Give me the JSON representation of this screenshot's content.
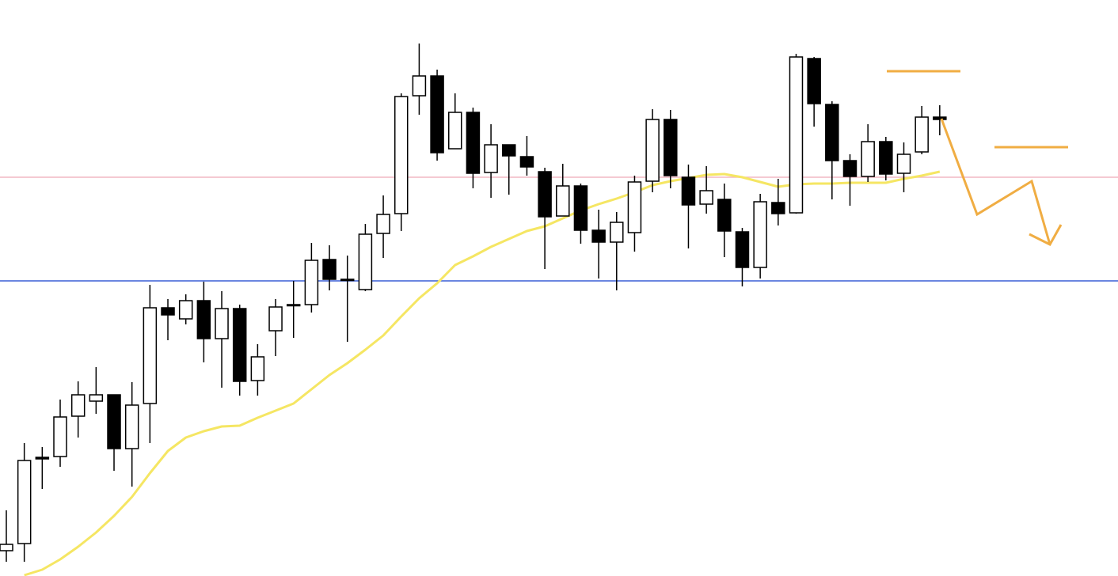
{
  "chart_data": {
    "type": "candlestick",
    "ylim": [
      0,
      728
    ],
    "open": [
      32,
      41,
      150,
      151,
      202,
      221,
      229,
      161,
      218,
      339,
      325,
      348,
      300,
      338,
      247,
      310,
      342,
      343,
      400,
      375,
      362,
      433,
      458,
      607,
      632,
      540,
      586,
      510,
      545,
      530,
      511,
      455,
      493,
      437,
      422,
      434,
      499,
      577,
      504,
      470,
      476,
      435,
      390,
      472,
      459,
      654,
      596,
      525,
      505,
      549,
      509,
      536,
      580
    ],
    "high": [
      83,
      168,
      163,
      223,
      246,
      264,
      229,
      245,
      368,
      350,
      356,
      372,
      360,
      343,
      293,
      350,
      373,
      421,
      418,
      405,
      445,
      481,
      610,
      673,
      640,
      610,
      592,
      571,
      545,
      556,
      516,
      521,
      496,
      463,
      460,
      506,
      590,
      589,
      520,
      518,
      496,
      440,
      483,
      502,
      660,
      656,
      600,
      533,
      571,
      555,
      548,
      594,
      595
    ],
    "low": [
      18,
      18,
      110,
      138,
      175,
      205,
      133,
      113,
      168,
      298,
      318,
      270,
      238,
      228,
      228,
      278,
      301,
      333,
      361,
      296,
      360,
      402,
      436,
      583,
      525,
      540,
      490,
      478,
      482,
      506,
      388,
      455,
      420,
      376,
      361,
      410,
      485,
      490,
      414,
      458,
      403,
      366,
      376,
      443,
      458,
      568,
      476,
      468,
      498,
      500,
      485,
      533,
      557
    ],
    "close": [
      40,
      146,
      148,
      201,
      229,
      229,
      161,
      216,
      339,
      330,
      348,
      300,
      338,
      246,
      277,
      340,
      343,
      399,
      375,
      375,
      432,
      457,
      606,
      632,
      535,
      586,
      509,
      545,
      531,
      517,
      454,
      493,
      437,
      422,
      447,
      498,
      577,
      506,
      469,
      487,
      436,
      390,
      473,
      458,
      656,
      597,
      525,
      505,
      549,
      508,
      533,
      580,
      577
    ],
    "series": [
      {
        "color": "#f5e663",
        "values": [
          null,
          1,
          8,
          21,
          37,
          55,
          76,
          100,
          130,
          158,
          175,
          183,
          189,
          190,
          200,
          209,
          218,
          236,
          254,
          269,
          286,
          304,
          328,
          351,
          370,
          393,
          404,
          416,
          426,
          436,
          442,
          452,
          462,
          470,
          477,
          485,
          494,
          499,
          503,
          507,
          508,
          504,
          498,
          492,
          495,
          496,
          496,
          497,
          497,
          497,
          502,
          506,
          511
        ]
      }
    ],
    "hlines": [
      {
        "value": 504,
        "color": "#f2b8c3"
      },
      {
        "value": 373,
        "color": "#3a5fd6"
      }
    ]
  }
}
